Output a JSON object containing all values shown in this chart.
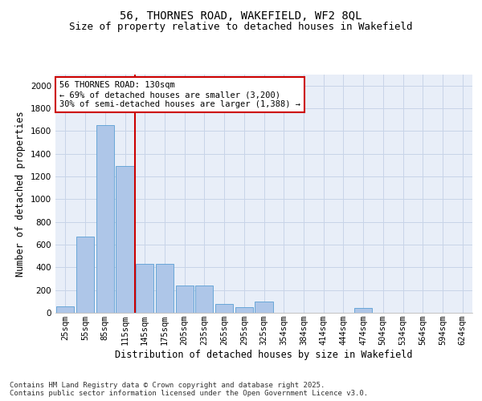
{
  "title_line1": "56, THORNES ROAD, WAKEFIELD, WF2 8QL",
  "title_line2": "Size of property relative to detached houses in Wakefield",
  "xlabel": "Distribution of detached houses by size in Wakefield",
  "ylabel": "Number of detached properties",
  "categories": [
    "25sqm",
    "55sqm",
    "85sqm",
    "115sqm",
    "145sqm",
    "175sqm",
    "205sqm",
    "235sqm",
    "265sqm",
    "295sqm",
    "325sqm",
    "354sqm",
    "384sqm",
    "414sqm",
    "444sqm",
    "474sqm",
    "504sqm",
    "534sqm",
    "564sqm",
    "594sqm",
    "624sqm"
  ],
  "values": [
    60,
    670,
    1650,
    1290,
    430,
    430,
    240,
    240,
    80,
    50,
    100,
    0,
    0,
    0,
    0,
    40,
    0,
    0,
    0,
    0,
    0
  ],
  "bar_color": "#aec6e8",
  "bar_edge_color": "#5a9fd4",
  "vline_color": "#cc0000",
  "vline_x_index": 3.5,
  "annotation_text": "56 THORNES ROAD: 130sqm\n← 69% of detached houses are smaller (3,200)\n30% of semi-detached houses are larger (1,388) →",
  "annotation_box_color": "#ffffff",
  "annotation_box_edge": "#cc0000",
  "ylim": [
    0,
    2100
  ],
  "yticks": [
    0,
    200,
    400,
    600,
    800,
    1000,
    1200,
    1400,
    1600,
    1800,
    2000
  ],
  "grid_color": "#c8d4e8",
  "bg_color": "#e8eef8",
  "footer_text": "Contains HM Land Registry data © Crown copyright and database right 2025.\nContains public sector information licensed under the Open Government Licence v3.0.",
  "title_fontsize": 10,
  "subtitle_fontsize": 9,
  "axis_label_fontsize": 8.5,
  "tick_fontsize": 7.5,
  "annotation_fontsize": 7.5,
  "footer_fontsize": 6.5
}
